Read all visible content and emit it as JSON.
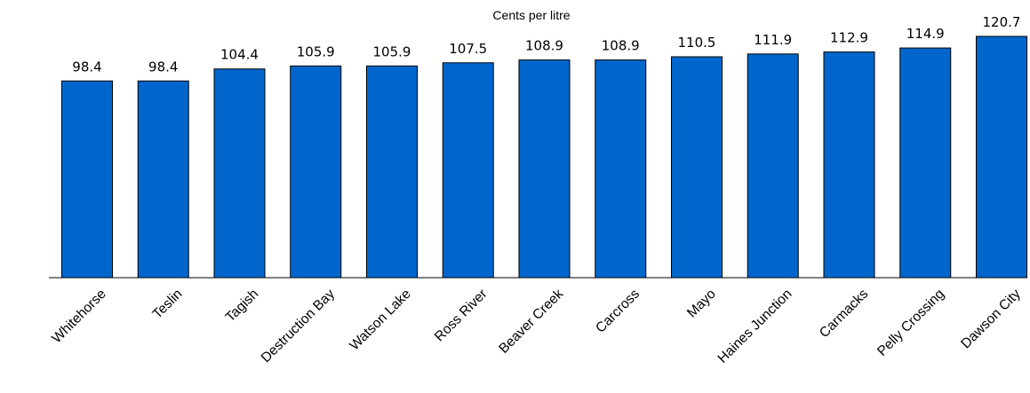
{
  "chart_data": {
    "type": "bar",
    "title": "Cents per litre",
    "xlabel": "",
    "ylabel": "",
    "categories": [
      "Whitehorse",
      "Teslin",
      "Tagish",
      "Destruction Bay",
      "Watson Lake",
      "Ross River",
      "Beaver Creek",
      "Carcross",
      "Mayo",
      "Haines Junction",
      "Carmacks",
      "Pelly Crossing",
      "Dawson City"
    ],
    "values": [
      98.4,
      98.4,
      104.4,
      105.9,
      105.9,
      107.5,
      108.9,
      108.9,
      110.5,
      111.9,
      112.9,
      114.9,
      120.7
    ],
    "value_labels": [
      "98.4",
      "98.4",
      "104.4",
      "105.9",
      "105.9",
      "107.5",
      "108.9",
      "108.9",
      "110.5",
      "111.9",
      "112.9",
      "114.9",
      "120.7"
    ],
    "ylim": [
      0,
      120.7
    ],
    "grid": false,
    "legend": "none",
    "bar_color": "#0066cc",
    "bar_edge_color": "#000000",
    "axis_color": "#000000"
  }
}
